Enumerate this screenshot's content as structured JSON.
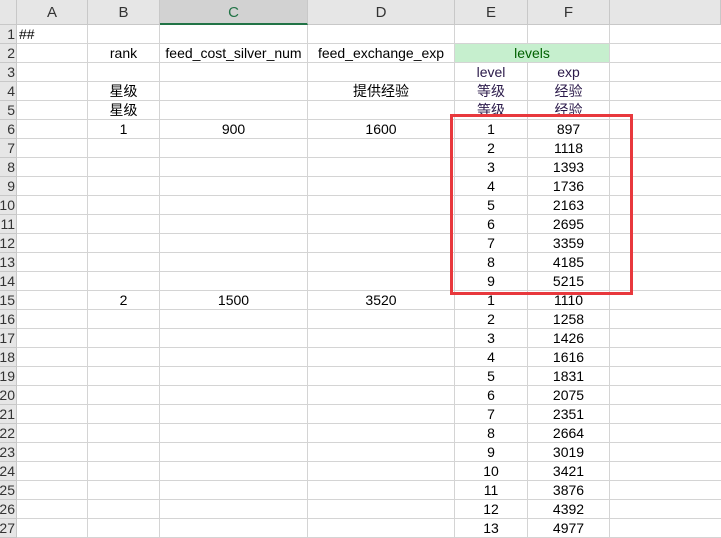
{
  "columns": [
    "A",
    "B",
    "C",
    "D",
    "E",
    "F"
  ],
  "selected_column": "C",
  "row_numbers": [
    1,
    2,
    3,
    4,
    5,
    6,
    7,
    8,
    9,
    10,
    11,
    12,
    13,
    14,
    15,
    16,
    17,
    18,
    19,
    20,
    21,
    22,
    23,
    24,
    25,
    26,
    27
  ],
  "cells": {
    "A1": "##",
    "B2": "rank",
    "C2": "feed_cost_silver_num",
    "D2": "feed_exchange_exp",
    "E2": "levels",
    "E3": "level",
    "F3": "exp",
    "B4": "星级",
    "D4": "提供经验",
    "E4": "等级",
    "F4": "经验",
    "B5": "星级",
    "E5": "等级",
    "F5": "经验",
    "B6": "1",
    "C6": "900",
    "D6": "1600",
    "B15": "2",
    "C15": "1500",
    "D15": "3520"
  },
  "levels_block1": {
    "start_row": 6,
    "levels": [
      "1",
      "2",
      "3",
      "4",
      "5",
      "6",
      "7",
      "8",
      "9"
    ],
    "exp": [
      "897",
      "1118",
      "1393",
      "1736",
      "2163",
      "2695",
      "3359",
      "4185",
      "5215"
    ]
  },
  "levels_block2": {
    "start_row": 15,
    "levels": [
      "1",
      "2",
      "3",
      "4",
      "5",
      "6",
      "7",
      "8",
      "9",
      "10",
      "11",
      "12",
      "13"
    ],
    "exp": [
      "1110",
      "1258",
      "1426",
      "1616",
      "1831",
      "2075",
      "2351",
      "2664",
      "3019",
      "3421",
      "3876",
      "4392",
      "4977"
    ]
  },
  "colors": {
    "header_fill": "#c6efce",
    "highlight_box": "#e8383d",
    "selected_header": "#217346"
  }
}
